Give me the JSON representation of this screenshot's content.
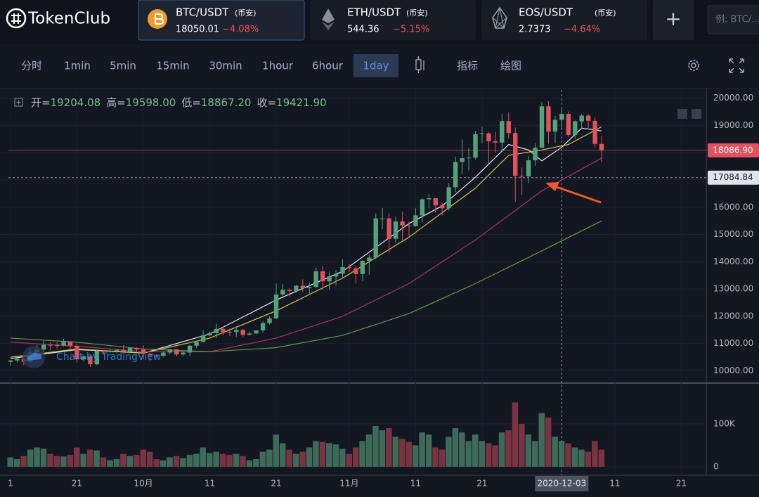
{
  "header": {
    "logo": "TokenClub",
    "tickers": [
      {
        "pair": "BTC/USDT",
        "exchange": "(币安)",
        "price": "18050.01",
        "change": "−4.08%"
      },
      {
        "pair": "ETH/USDT",
        "exchange": "(币安)",
        "price": "544.36",
        "change": "−5.15%"
      },
      {
        "pair": "EOS/USDT",
        "exchange": "(币安)",
        "price": "2.7373",
        "change": "−4.64%"
      }
    ],
    "add_button": "+",
    "search_placeholder": "例: BTC/..."
  },
  "toolbar": {
    "intervals": [
      "分时",
      "1min",
      "5min",
      "15min",
      "30min",
      "1hour",
      "6hour",
      "1day"
    ],
    "selected": "1day",
    "tools": [
      "指标",
      "绘图"
    ]
  },
  "ohlc_legend": {
    "labels": [
      "开=",
      "高=",
      "低=",
      "收="
    ],
    "values": [
      19204.08,
      19598,
      18867.2,
      19421.9
    ],
    "value_labels": [
      "19204.08",
      "19598.00",
      "18867.20",
      "19421.90"
    ]
  },
  "watermark": "Chart by TradingView",
  "chart_data": {
    "type": "candlestick",
    "categories": [
      "1",
      null,
      null,
      null,
      null,
      null,
      null,
      null,
      null,
      null,
      "21",
      null,
      null,
      null,
      null,
      null,
      null,
      null,
      null,
      null,
      "10月",
      null,
      null,
      null,
      null,
      null,
      null,
      null,
      null,
      null,
      "11",
      null,
      null,
      null,
      null,
      null,
      null,
      null,
      null,
      null,
      "21",
      null,
      null,
      null,
      null,
      null,
      null,
      null,
      null,
      null,
      null,
      "11月",
      null,
      null,
      null,
      null,
      null,
      null,
      null,
      null,
      null,
      "11",
      null,
      null,
      null,
      null,
      null,
      null,
      null,
      null,
      null,
      "21",
      null,
      null,
      null,
      null,
      null,
      null,
      null,
      null,
      null,
      null,
      null,
      "2020-12-03",
      null,
      null,
      null,
      null,
      null,
      null,
      null,
      "11",
      null,
      null,
      null,
      null,
      null,
      null,
      null,
      null,
      null,
      "21"
    ],
    "open": [
      10330,
      10380,
      10440,
      10330,
      10680,
      10780,
      10950,
      10940,
      10930,
      11080,
      10920,
      10420,
      10530,
      10240,
      10740,
      10690,
      10730,
      10770,
      10700,
      10840,
      10780,
      10620,
      10570,
      10550,
      10670,
      10790,
      10600,
      10670,
      10920,
      11060,
      11300,
      11380,
      11540,
      11430,
      11420,
      11500,
      11320,
      11370,
      11480,
      11750,
      11920,
      12800,
      12970,
      12930,
      13120,
      13030,
      13070,
      13650,
      13280,
      13460,
      13560,
      13800,
      13760,
      13550,
      14030,
      14150,
      15590,
      15590,
      14840,
      15480,
      15330,
      15310,
      15700,
      16290,
      16330,
      16070,
      15960,
      16730,
      17660,
      17800,
      17820,
      18680,
      18710,
      18420,
      18370,
      19160,
      18720,
      17150,
      17130,
      17720,
      18180,
      19700,
      18770,
      19204.08,
      19421.9,
      18650,
      19150,
      19360,
      19170,
      18320,
      null,
      null,
      null,
      null,
      null,
      null,
      null,
      null,
      null,
      null,
      null,
      null
    ],
    "high": [
      10400,
      10480,
      10580,
      10800,
      10940,
      11100,
      11040,
      11040,
      11180,
      11080,
      10990,
      10570,
      10560,
      10780,
      10770,
      10800,
      10800,
      10950,
      10860,
      10850,
      10930,
      10660,
      10600,
      10700,
      10800,
      10800,
      10690,
      10950,
      11100,
      11490,
      11440,
      11730,
      11560,
      11560,
      11630,
      11540,
      11420,
      11490,
      11820,
      12000,
      13200,
      13180,
      13020,
      13160,
      13350,
      13240,
      13790,
      13860,
      13640,
      13690,
      14100,
      13900,
      13830,
      14070,
      14250,
      15770,
      15970,
      15770,
      15650,
      15840,
      15480,
      15960,
      16340,
      16480,
      16330,
      16150,
      16880,
      17860,
      18480,
      18180,
      18800,
      18960,
      18760,
      18770,
      19420,
      19480,
      18920,
      17460,
      17880,
      18350,
      19860,
      19890,
      19340,
      19598,
      19510,
      19180,
      19420,
      19420,
      19290,
      18640,
      null,
      null,
      null,
      null,
      null,
      null,
      null,
      null,
      null,
      null,
      null,
      null
    ],
    "low": [
      10200,
      10300,
      10200,
      10270,
      10630,
      10680,
      10750,
      10820,
      10890,
      10750,
      10300,
      10350,
      10140,
      10200,
      10590,
      10650,
      10630,
      10640,
      10650,
      10670,
      10430,
      10370,
      10500,
      10520,
      10600,
      10530,
      10540,
      10540,
      10830,
      11050,
      11280,
      11200,
      11300,
      11280,
      11250,
      11230,
      11300,
      11350,
      11410,
      11700,
      11900,
      12700,
      12720,
      12880,
      12900,
      12780,
      13060,
      12950,
      12980,
      13130,
      13430,
      13620,
      13200,
      13290,
      13530,
      14100,
      15190,
      14350,
      14700,
      14800,
      14930,
      15280,
      15440,
      15950,
      15800,
      15700,
      15870,
      16550,
      17210,
      17350,
      17750,
      18360,
      17600,
      18000,
      18030,
      18520,
      16200,
      16450,
      16880,
      17520,
      18180,
      18330,
      18350,
      18867.2,
      18570,
      18500,
      18860,
      18900,
      18200,
      17650,
      null,
      null,
      null,
      null,
      null,
      null,
      null,
      null,
      null,
      null,
      null,
      null
    ],
    "close": [
      10380,
      10440,
      10330,
      10680,
      10780,
      10950,
      10940,
      10930,
      11080,
      10920,
      10420,
      10530,
      10240,
      10740,
      10690,
      10730,
      10770,
      10700,
      10840,
      10780,
      10620,
      10570,
      10550,
      10670,
      10790,
      10600,
      10670,
      10920,
      11060,
      11300,
      11380,
      11540,
      11430,
      11420,
      11500,
      11320,
      11370,
      11480,
      11750,
      11920,
      12800,
      12970,
      12930,
      13120,
      13030,
      13070,
      13650,
      13280,
      13460,
      13560,
      13800,
      13760,
      13550,
      14030,
      14150,
      15590,
      15590,
      14840,
      15480,
      15330,
      15310,
      15700,
      16290,
      16330,
      16070,
      15960,
      16730,
      17660,
      17800,
      17820,
      18680,
      18710,
      18420,
      18370,
      19160,
      18720,
      17150,
      17130,
      17720,
      18180,
      19700,
      18770,
      19204.08,
      19421.9,
      18650,
      19150,
      19360,
      19170,
      18320,
      18086.9,
      null,
      null,
      null,
      null,
      null,
      null,
      null,
      null,
      null,
      null,
      null,
      null
    ],
    "up_color": "#53a27c",
    "down_color": "#e0525e",
    "ylim": [
      9600,
      20300
    ],
    "yticks": [
      {
        "value": 10000,
        "label": "10000.00"
      },
      {
        "value": 11000,
        "label": "11000.00"
      },
      {
        "value": 12000,
        "label": "12000.00"
      },
      {
        "value": 13000,
        "label": "13000.00"
      },
      {
        "value": 14000,
        "label": "14000.00"
      },
      {
        "value": 15000,
        "label": "15000.00"
      },
      {
        "value": 16000,
        "label": "16000.00"
      },
      {
        "value": 17000,
        "label": "17000.00"
      },
      {
        "value": 18000,
        "label": "18000.00"
      },
      {
        "value": 19000,
        "label": "19000.00"
      },
      {
        "value": 20000,
        "label": "20000.00"
      }
    ],
    "grid": true,
    "volume": {
      "values": [
        22000,
        18000,
        25000,
        40000,
        45000,
        42000,
        30000,
        25000,
        24000,
        28000,
        45000,
        30000,
        40000,
        38000,
        22000,
        15000,
        18000,
        30000,
        25000,
        28000,
        40000,
        35000,
        18000,
        15000,
        22000,
        25000,
        20000,
        28000,
        30000,
        45000,
        32000,
        35000,
        30000,
        28000,
        30000,
        25000,
        15000,
        18000,
        35000,
        40000,
        75000,
        55000,
        40000,
        30000,
        35000,
        45000,
        60000,
        58000,
        55000,
        52000,
        42000,
        30000,
        45000,
        60000,
        75000,
        95000,
        85000,
        90000,
        70000,
        65000,
        58000,
        50000,
        80000,
        75000,
        45000,
        40000,
        70000,
        90000,
        80000,
        60000,
        75000,
        60000,
        55000,
        50000,
        80000,
        85000,
        150000,
        100000,
        75000,
        60000,
        125000,
        115000,
        70000,
        60000,
        55000,
        45000,
        40000,
        35000,
        60000,
        40000,
        null,
        null,
        null,
        null,
        null,
        null,
        null,
        null,
        null,
        null,
        null,
        null
      ],
      "ylim": [
        0,
        190000
      ],
      "yticks": [
        0,
        {
          "value": 100000,
          "label": "100K"
        }
      ],
      "up_color": "#3e6b59",
      "down_color": "#7a3342"
    },
    "ma_lines": [
      {
        "color": "#e8e8ea",
        "x": [
          0,
          10,
          20,
          30,
          40,
          50,
          60,
          65,
          70,
          75,
          78,
          80,
          83,
          86,
          89
        ],
        "values": [
          10450,
          10780,
          10650,
          11350,
          12600,
          13650,
          15400,
          16050,
          17100,
          18300,
          18100,
          17700,
          18200,
          18900,
          18800
        ]
      },
      {
        "color": "#d8c64a",
        "x": [
          0,
          10,
          20,
          30,
          40,
          50,
          60,
          70,
          75,
          80,
          84,
          89
        ],
        "values": [
          10500,
          10800,
          10650,
          11200,
          12200,
          13400,
          14900,
          16700,
          17900,
          18100,
          18300,
          18950
        ]
      },
      {
        "color": "#a8346a",
        "x": [
          0,
          10,
          20,
          30,
          40,
          50,
          60,
          70,
          80,
          89
        ],
        "values": [
          11050,
          10900,
          10700,
          10700,
          11200,
          12000,
          13200,
          14800,
          16600,
          17800
        ]
      },
      {
        "color": "#5e9a45",
        "x": [
          0,
          10,
          20,
          30,
          40,
          50,
          60,
          70,
          80,
          89
        ],
        "values": [
          11200,
          11050,
          10800,
          10700,
          10850,
          11300,
          12100,
          13200,
          14400,
          15500
        ]
      }
    ],
    "price_lines": [
      {
        "value": 18086.9,
        "label": "18086.90",
        "color": "#e0525e",
        "style": "solid"
      },
      {
        "value": 17084.84,
        "label": "17084.84",
        "color": "#9598a1",
        "style": "dashed"
      }
    ],
    "crosshair": "2020-12-03"
  }
}
